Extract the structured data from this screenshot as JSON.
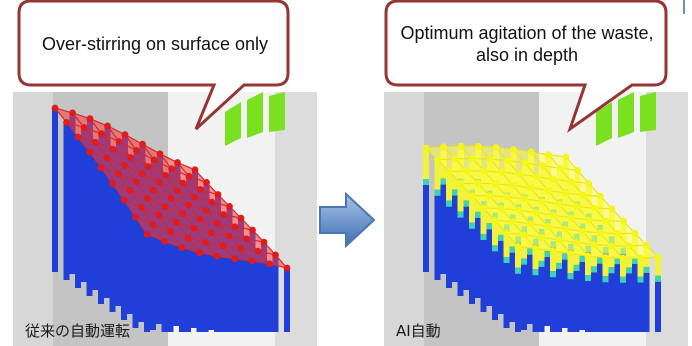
{
  "left": {
    "callout": "Over-stirring on surface only",
    "caption": "従来の自動運転"
  },
  "right": {
    "callout": "Optimum agitation of the waste, also in depth",
    "caption": "AI自動"
  },
  "colors": {
    "callout_border": "#943634",
    "surface_left": "#ff3b3b",
    "surface_right": "#ffff4d",
    "column": "#1f3fd8",
    "green_bar": "#7be01f",
    "arrow": "#4f81bd"
  }
}
